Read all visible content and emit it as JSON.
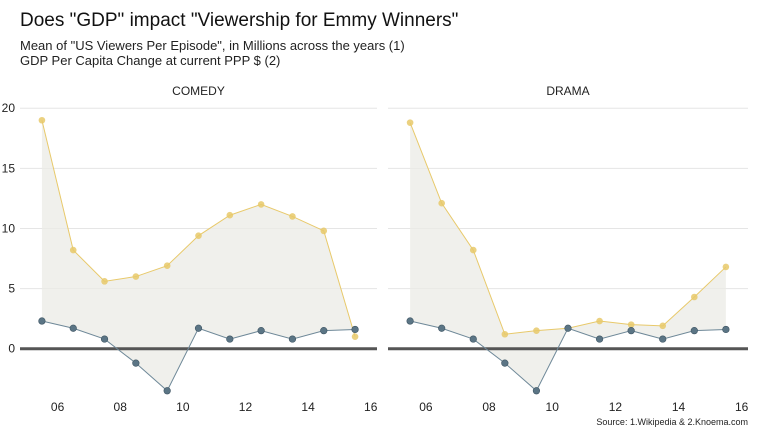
{
  "header": {
    "title": "Does \"GDP\" impact \"Viewership for Emmy Winners\"",
    "subtitle_line1": "Mean of \"US Viewers Per Episode\", in Millions across the years (1)",
    "subtitle_line2": "GDP Per Capita Change at current PPP $ (2)"
  },
  "caption": "Source: 1.Wikipedia & 2.Knoema.com",
  "colors": {
    "viewers": "#e8c96a",
    "gdp": "#6e8898",
    "gdp_point": "#5b7585",
    "ribbon": "#ebebe6",
    "zero_line": "#555555",
    "grid": "#e5e5e5"
  },
  "chart_data": {
    "type": "line",
    "facets": [
      "COMEDY",
      "DRAMA"
    ],
    "x_tick_labels": [
      "06",
      "08",
      "10",
      "12",
      "14",
      "16"
    ],
    "x_ticks": [
      2006,
      2008,
      2010,
      2012,
      2014,
      2016
    ],
    "y_tick_labels": [
      "0",
      "5",
      "10",
      "15",
      "20"
    ],
    "y_ticks": [
      0,
      5,
      10,
      15,
      20
    ],
    "xlim": [
      2004.8,
      2016.2
    ],
    "ylim": [
      -4.6,
      20.6
    ],
    "grid": true,
    "shaded_ribbon_between_series": true,
    "x": [
      2005.5,
      2006.5,
      2007.5,
      2008.5,
      2009.5,
      2010.5,
      2011.5,
      2012.5,
      2013.5,
      2014.5,
      2015.5
    ],
    "panels": [
      {
        "facet": "COMEDY",
        "viewers": [
          19.0,
          8.2,
          5.6,
          6.0,
          6.9,
          9.4,
          11.1,
          12.0,
          11.0,
          9.8,
          1.0
        ],
        "gdp": [
          2.3,
          1.7,
          0.8,
          -1.2,
          -3.5,
          1.7,
          0.8,
          1.5,
          0.8,
          1.5,
          1.6
        ]
      },
      {
        "facet": "DRAMA",
        "viewers": [
          18.8,
          12.1,
          8.2,
          1.2,
          1.5,
          1.7,
          2.3,
          2.0,
          1.9,
          4.3,
          6.8
        ],
        "gdp": [
          2.3,
          1.7,
          0.8,
          -1.2,
          -3.5,
          1.7,
          0.8,
          1.5,
          0.8,
          1.5,
          1.6
        ]
      }
    ]
  }
}
